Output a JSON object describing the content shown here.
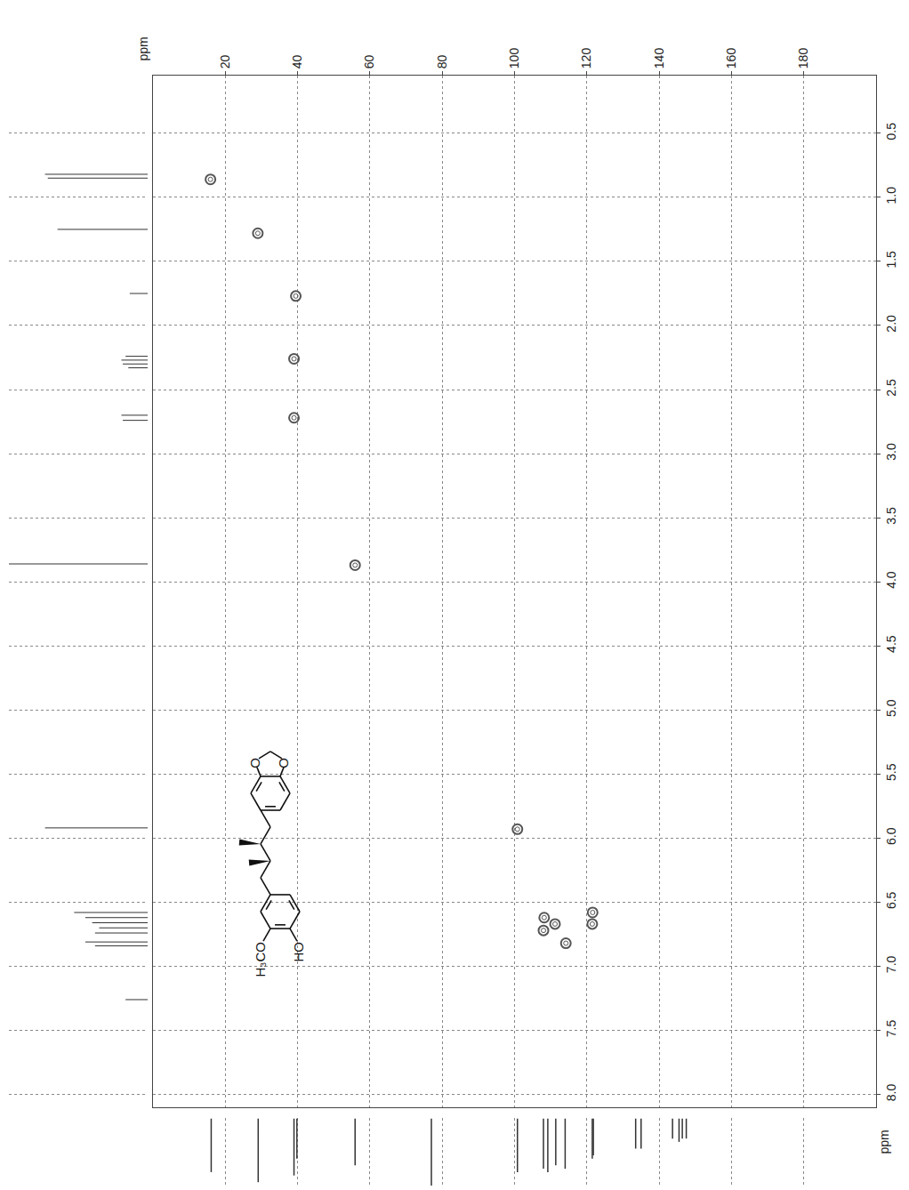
{
  "chart_data": {
    "type": "scatter",
    "x_label": "ppm",
    "y_label": "ppm",
    "xlim": [
      0,
      200
    ],
    "xticks": [
      20,
      40,
      60,
      80,
      100,
      120,
      140,
      160,
      180
    ],
    "ylim": [
      0.05,
      8.1
    ],
    "yticks": [
      0.5,
      {
        "value": 1,
        "label": "1.0"
      },
      1.5,
      {
        "value": 2,
        "label": "2.0"
      },
      2.5,
      {
        "value": 3,
        "label": "3.0"
      },
      3.5,
      {
        "value": 4,
        "label": "4.0"
      },
      4.5,
      {
        "value": 5,
        "label": "5.0"
      },
      5.5,
      {
        "value": 6,
        "label": "6.0"
      },
      6.5,
      {
        "value": 7,
        "label": "7.0"
      },
      7.5,
      {
        "value": 8,
        "label": "8.0"
      }
    ],
    "grid": true,
    "marker": "circle-open",
    "color": "#555555",
    "tick_labels": true,
    "x": [
      15.9,
      29.0,
      39.5,
      39.0,
      39.0,
      55.9,
      100.8,
      108.2,
      111.2,
      108.0,
      114.2,
      121.6,
      121.5
    ],
    "y": [
      0.86,
      1.28,
      1.77,
      2.26,
      2.72,
      3.87,
      5.93,
      6.62,
      6.67,
      6.72,
      6.82,
      6.58,
      6.67
    ],
    "proton_projection": {
      "ppm": [
        0.82,
        0.85,
        1.25,
        1.75,
        2.24,
        2.27,
        2.3,
        2.33,
        2.7,
        2.74,
        3.86,
        5.92,
        6.58,
        6.62,
        6.66,
        6.7,
        6.74,
        6.81,
        6.84,
        7.26
      ],
      "intensity": [
        74,
        72,
        65,
        13,
        16,
        19,
        18,
        14,
        19,
        18,
        100,
        74,
        53,
        45,
        40,
        35,
        38,
        45,
        38,
        16
      ],
      "intensity_lim": [
        0,
        100
      ]
    },
    "carbon_projection": {
      "ppm": [
        16.1,
        29.1,
        39.0,
        39.8,
        55.9,
        77.0,
        100.8,
        108.0,
        109.2,
        111.4,
        114.0,
        121.5,
        121.8,
        133.5,
        135.0,
        143.7,
        145.5,
        146.4,
        147.5
      ],
      "intensity": [
        80,
        95,
        85,
        60,
        70,
        100,
        80,
        75,
        80,
        70,
        75,
        60,
        55,
        45,
        45,
        30,
        35,
        30,
        30
      ],
      "intensity_lim": [
        0,
        100
      ]
    },
    "structure": {
      "labels": [
        "H₃CO",
        "HO",
        "O",
        "O"
      ]
    }
  }
}
